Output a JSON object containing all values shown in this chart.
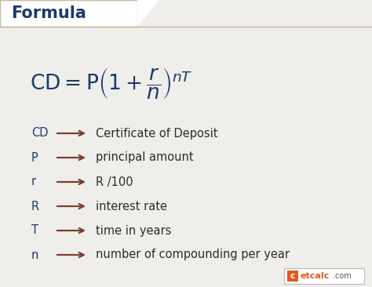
{
  "bg_color": "#f0eeeb",
  "header_box_color": "#ffffff",
  "header_border_color": "#c8b89a",
  "header_text": "Formula",
  "header_text_color": "#1a3a6b",
  "formula_color": "#1a3a6b",
  "arrow_color": "#7a4030",
  "desc_color": "#2c2c2c",
  "variables": [
    "CD",
    "P",
    "r",
    "R",
    "T",
    "n"
  ],
  "descriptions": [
    "Certificate of Deposit",
    "principal amount",
    "R /100",
    "interest rate",
    "time in years",
    "number of compounding per year"
  ],
  "watermark_orange": "#e05a20",
  "watermark_gray": "#555555",
  "fig_width": 4.74,
  "fig_height": 3.66,
  "dpi": 100
}
